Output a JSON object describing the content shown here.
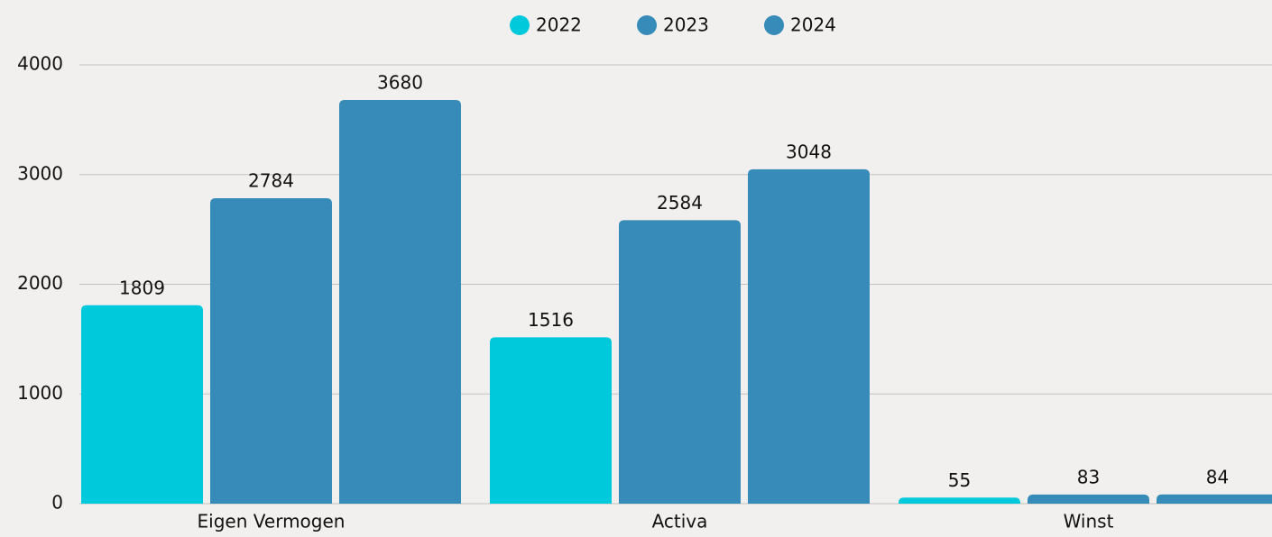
{
  "chart_data": {
    "type": "bar",
    "categories": [
      "Eigen Vermogen",
      "Activa",
      "Winst"
    ],
    "series": [
      {
        "name": "2022",
        "color": "#00c9db",
        "values": [
          1809,
          1516,
          55
        ]
      },
      {
        "name": "2023",
        "color": "#368bb8",
        "values": [
          2784,
          2584,
          83
        ]
      },
      {
        "name": "2024",
        "color": "#368bb8",
        "values": [
          3680,
          3048,
          84
        ]
      }
    ],
    "ylim": [
      0,
      4000
    ],
    "yticks": [
      0,
      1000,
      2000,
      3000,
      4000
    ],
    "grid": true,
    "legend": "top"
  }
}
